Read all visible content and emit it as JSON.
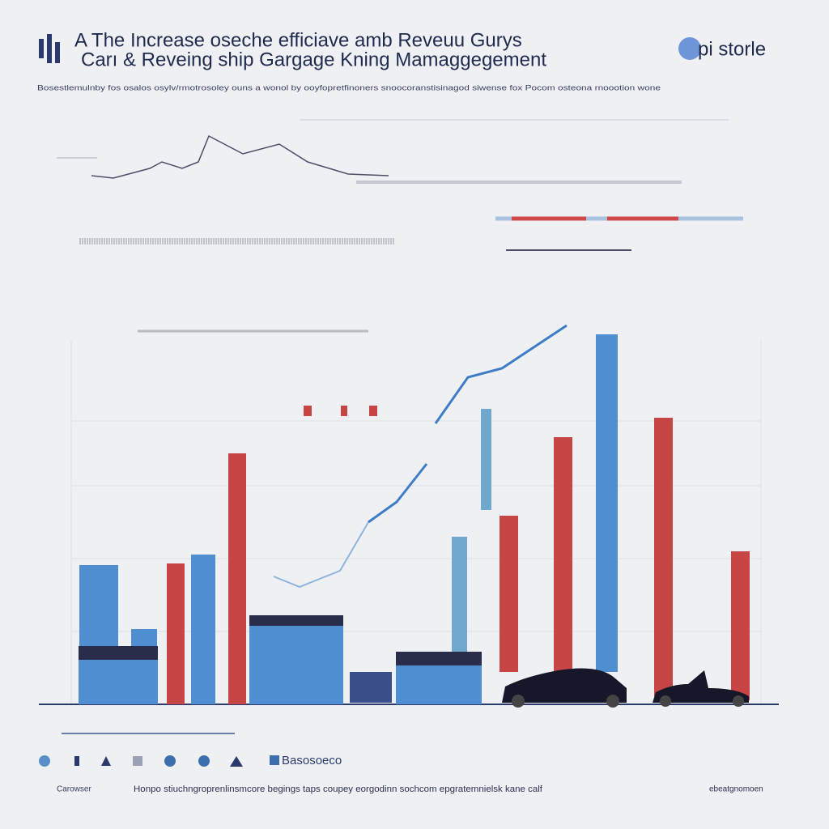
{
  "header": {
    "title_line1": "A The Increase oseche efficiave amb Reveuu Gurys",
    "title_line2": "Carı & Reveing ship Gargage Kning Mamaggegement",
    "logo": "pi storle",
    "subtitle": "Bosestlemulnby fos osalos osylv/rmotrosoley ouns a wonol by ooyfopretfinoners snoocoranstisinagod siwense fox Pocom osteona rnoootion wone"
  },
  "legend": {
    "label": "Basosoeco"
  },
  "footer": {
    "left": "Carowser",
    "center": "Honpo stiuchngroprenlinsmcore begings taps coupey eorgodinn sochcom epgratemnielsk kane calf",
    "right": "ebeatgnomoen"
  }
}
